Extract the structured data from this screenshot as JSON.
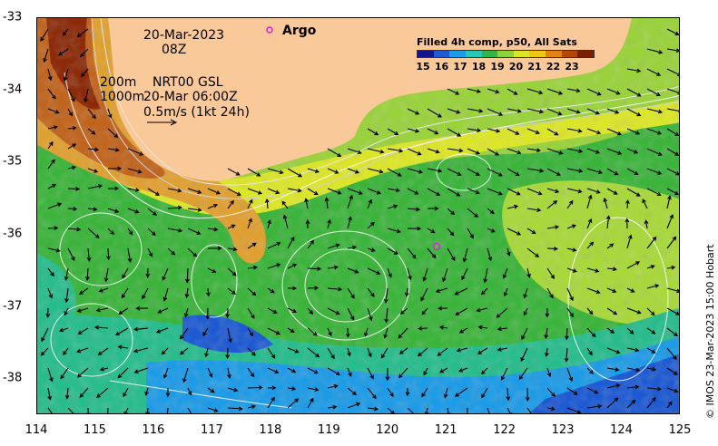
{
  "map": {
    "x_ticks": [
      "114",
      "115",
      "116",
      "117",
      "118",
      "119",
      "120",
      "121",
      "122",
      "123",
      "124",
      "125"
    ],
    "y_ticks": [
      "-33",
      "-34",
      "-35",
      "-36",
      "-37",
      "-38"
    ],
    "lon_range": [
      114,
      125
    ],
    "lat_range": [
      -33,
      -38.5
    ]
  },
  "annotations": {
    "date": "20-Mar-2023",
    "time": "08Z",
    "contour_200m": "200m",
    "contour_1000m": "1000m",
    "current_source": "NRT00 GSL",
    "current_time": "20-Mar 06:00Z",
    "scale": "0.5m/s (1kt 24h)",
    "argo": "Argo"
  },
  "colorbar": {
    "title": "Filled 4h comp, p50, All Sats",
    "ticks": [
      "15",
      "16",
      "17",
      "18",
      "19",
      "20",
      "21",
      "22",
      "23"
    ],
    "colors": [
      "#14148c",
      "#1e5ad2",
      "#1e9be6",
      "#28c8b4",
      "#32b446",
      "#8cd23c",
      "#dce628",
      "#f0c814",
      "#e08214",
      "#b4460a",
      "#7a1e05"
    ]
  },
  "credit": "© IMOS 23-Mar-2023 15:00 Hobart"
}
